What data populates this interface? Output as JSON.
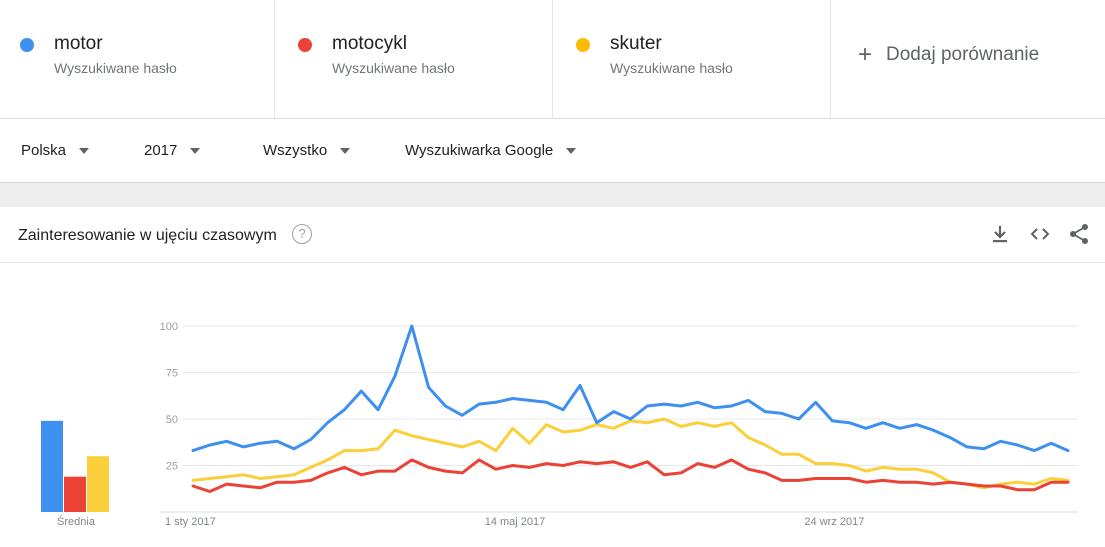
{
  "terms": [
    {
      "name": "motor",
      "subtitle": "Wyszukiwane hasło",
      "color": "#3d8ff0"
    },
    {
      "name": "motocykl",
      "subtitle": "Wyszukiwane hasło",
      "color": "#ea4335"
    },
    {
      "name": "skuter",
      "subtitle": "Wyszukiwane hasło",
      "color": "#fbbc04"
    }
  ],
  "add_comparison": {
    "icon": "plus-icon",
    "label": "Dodaj porównanie"
  },
  "filters": {
    "region": "Polska",
    "time": "2017",
    "category": "Wszystko",
    "source": "Wyszukiwarka Google"
  },
  "card": {
    "title": "Zainteresowanie w ujęciu czasowym",
    "help_icon": "question-circle-icon",
    "tools": [
      "download-icon",
      "embed-code-icon",
      "share-icon"
    ]
  },
  "chart_data": {
    "type": "line",
    "ylim": [
      0,
      100
    ],
    "y_ticks": [
      "25",
      "50",
      "75",
      "100"
    ],
    "x_ticks": [
      {
        "label": "1 sty 2017",
        "index": 0
      },
      {
        "label": "14 maj 2017",
        "index": 19
      },
      {
        "label": "24 wrz 2017",
        "index": 38
      }
    ],
    "grid": true,
    "averages_label": "Średnia",
    "series": [
      {
        "name": "motor",
        "color": "#3d8ff0",
        "average": 49,
        "values": [
          33,
          36,
          38,
          35,
          37,
          38,
          34,
          39,
          48,
          55,
          65,
          55,
          73,
          100,
          67,
          57,
          52,
          58,
          59,
          61,
          60,
          59,
          55,
          68,
          48,
          54,
          50,
          57,
          58,
          57,
          59,
          56,
          57,
          60,
          54,
          53,
          50,
          59,
          49,
          48,
          45,
          48,
          45,
          47,
          44,
          40,
          35,
          34,
          38,
          36,
          33,
          37,
          33
        ]
      },
      {
        "name": "motocykl",
        "color": "#ea4335",
        "average": 19,
        "values": [
          14,
          11,
          15,
          14,
          13,
          16,
          16,
          17,
          21,
          24,
          20,
          22,
          22,
          28,
          24,
          22,
          21,
          28,
          23,
          25,
          24,
          26,
          25,
          27,
          26,
          27,
          24,
          27,
          20,
          21,
          26,
          24,
          28,
          23,
          21,
          17,
          17,
          18,
          18,
          18,
          16,
          17,
          16,
          16,
          15,
          16,
          15,
          14,
          14,
          12,
          12,
          16,
          16
        ]
      },
      {
        "name": "skuter",
        "color": "#fbcf3a",
        "average": 30,
        "values": [
          17,
          18,
          19,
          20,
          18,
          19,
          20,
          24,
          28,
          33,
          33,
          34,
          44,
          41,
          39,
          37,
          35,
          38,
          33,
          45,
          37,
          47,
          43,
          44,
          47,
          45,
          49,
          48,
          50,
          46,
          48,
          46,
          48,
          40,
          36,
          31,
          31,
          26,
          26,
          25,
          22,
          24,
          23,
          23,
          21,
          16,
          15,
          13,
          15,
          16,
          15,
          18,
          17
        ]
      }
    ]
  }
}
